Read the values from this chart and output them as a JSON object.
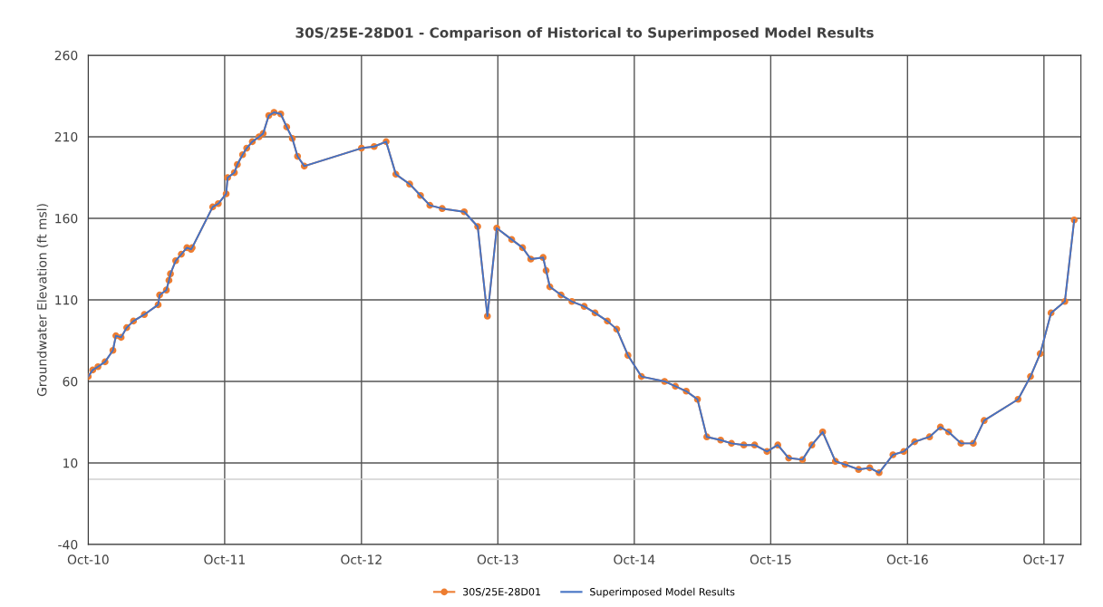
{
  "chart_data": {
    "type": "line",
    "title": "30S/25E-28D01 - Comparison of Historical to Superimposed Model Results",
    "ylabel": "Groundwater Elevation (ft msl)",
    "x": [
      "2010-10-01",
      "2010-10-13",
      "2010-10-27",
      "2010-11-15",
      "2010-12-06",
      "2010-12-14",
      "2010-12-28",
      "2011-01-12",
      "2011-01-30",
      "2011-02-28",
      "2011-04-06",
      "2011-04-10",
      "2011-04-28",
      "2011-05-05",
      "2011-05-09",
      "2011-05-23",
      "2011-06-07",
      "2011-06-22",
      "2011-07-03",
      "2011-07-06",
      "2011-08-30",
      "2011-09-14",
      "2011-10-05",
      "2011-10-09",
      "2011-10-27",
      "2011-11-04",
      "2011-11-18",
      "2011-11-29",
      "2011-12-14",
      "2012-01-01",
      "2012-01-12",
      "2012-01-27",
      "2012-02-10",
      "2012-02-28",
      "2012-03-15",
      "2012-03-30",
      "2012-04-13",
      "2012-05-01",
      "2012-10-01",
      "2012-11-04",
      "2012-12-06",
      "2013-01-01",
      "2013-02-07",
      "2013-03-08",
      "2013-04-02",
      "2013-05-05",
      "2013-07-03",
      "2013-08-08",
      "2013-09-03",
      "2013-09-28",
      "2013-11-07",
      "2013-12-06",
      "2013-12-28",
      "2014-01-30",
      "2014-02-07",
      "2014-02-17",
      "2014-03-19",
      "2014-04-17",
      "2014-05-20",
      "2014-06-18",
      "2014-07-21",
      "2014-08-15",
      "2014-09-14",
      "2014-10-20",
      "2014-12-21",
      "2015-01-19",
      "2015-02-17",
      "2015-03-19",
      "2015-04-13",
      "2015-05-20",
      "2015-06-18",
      "2015-07-21",
      "2015-08-19",
      "2015-09-21",
      "2015-10-20",
      "2015-11-18",
      "2015-12-25",
      "2016-01-19",
      "2016-02-17",
      "2016-03-22",
      "2016-04-17",
      "2016-05-23",
      "2016-06-22",
      "2016-07-17",
      "2016-08-23",
      "2016-09-21",
      "2016-10-20",
      "2016-11-29",
      "2016-12-28",
      "2017-01-19",
      "2017-02-21",
      "2017-03-26",
      "2017-04-24",
      "2017-07-24",
      "2017-08-26",
      "2017-09-21",
      "2017-10-20",
      "2017-11-26",
      "2017-12-21"
    ],
    "series": [
      {
        "name": "30S/25E-28D01",
        "color": "#ed7d31",
        "marker": "circle",
        "values": [
          63,
          67,
          69,
          72,
          79,
          88,
          87,
          93,
          97,
          101,
          107,
          113,
          116,
          122,
          126,
          134,
          138,
          142,
          141,
          142,
          167,
          169,
          175,
          185,
          188,
          193,
          199,
          203,
          207,
          210,
          212,
          223,
          225,
          224,
          216,
          209,
          198,
          192,
          203,
          204,
          207,
          187,
          181,
          174,
          168,
          166,
          164,
          155,
          100,
          154,
          147,
          142,
          135,
          136,
          128,
          118,
          113,
          109,
          106,
          102,
          97,
          92,
          76,
          63,
          60,
          57,
          54,
          49,
          26,
          24,
          22,
          21,
          21,
          17,
          21,
          13,
          12,
          21,
          29,
          11,
          9,
          6,
          7,
          4,
          15,
          17,
          23,
          26,
          32,
          29,
          22,
          22,
          36,
          49,
          63,
          77,
          102,
          109,
          159
        ]
      },
      {
        "name": "Superimposed Model Results",
        "color": "#4472c4",
        "marker": "none",
        "values": [
          63,
          67,
          69,
          72,
          79,
          88,
          87,
          93,
          97,
          101,
          107,
          113,
          116,
          122,
          126,
          134,
          138,
          142,
          141,
          142,
          167,
          169,
          175,
          185,
          188,
          193,
          199,
          203,
          207,
          210,
          212,
          223,
          225,
          224,
          216,
          209,
          198,
          192,
          203,
          204,
          207,
          187,
          181,
          174,
          168,
          166,
          164,
          155,
          100,
          154,
          147,
          142,
          135,
          136,
          128,
          118,
          113,
          109,
          106,
          102,
          97,
          92,
          76,
          63,
          60,
          57,
          54,
          49,
          26,
          24,
          22,
          21,
          21,
          17,
          21,
          13,
          12,
          21,
          29,
          11,
          9,
          6,
          7,
          4,
          15,
          17,
          23,
          26,
          32,
          29,
          22,
          22,
          36,
          49,
          63,
          77,
          102,
          109,
          159
        ]
      }
    ],
    "xlim": [
      "2010-10-01",
      "2018-01-08"
    ],
    "xticks": [
      {
        "value": "2010-10-01",
        "label": "Oct-10"
      },
      {
        "value": "2011-10-01",
        "label": "Oct-11"
      },
      {
        "value": "2012-10-01",
        "label": "Oct-12"
      },
      {
        "value": "2013-10-01",
        "label": "Oct-13"
      },
      {
        "value": "2014-10-01",
        "label": "Oct-14"
      },
      {
        "value": "2015-10-01",
        "label": "Oct-15"
      },
      {
        "value": "2016-10-01",
        "label": "Oct-16"
      },
      {
        "value": "2017-10-01",
        "label": "Oct-17"
      }
    ],
    "ylim": [
      -40,
      260
    ],
    "yticks": [
      -40,
      10,
      60,
      110,
      160,
      210,
      260
    ],
    "ref_lines": [
      {
        "axis": "y",
        "value": 0,
        "color": "#d0d0d0"
      }
    ],
    "grid": true,
    "legend": "bottom",
    "line_style": "solid"
  }
}
